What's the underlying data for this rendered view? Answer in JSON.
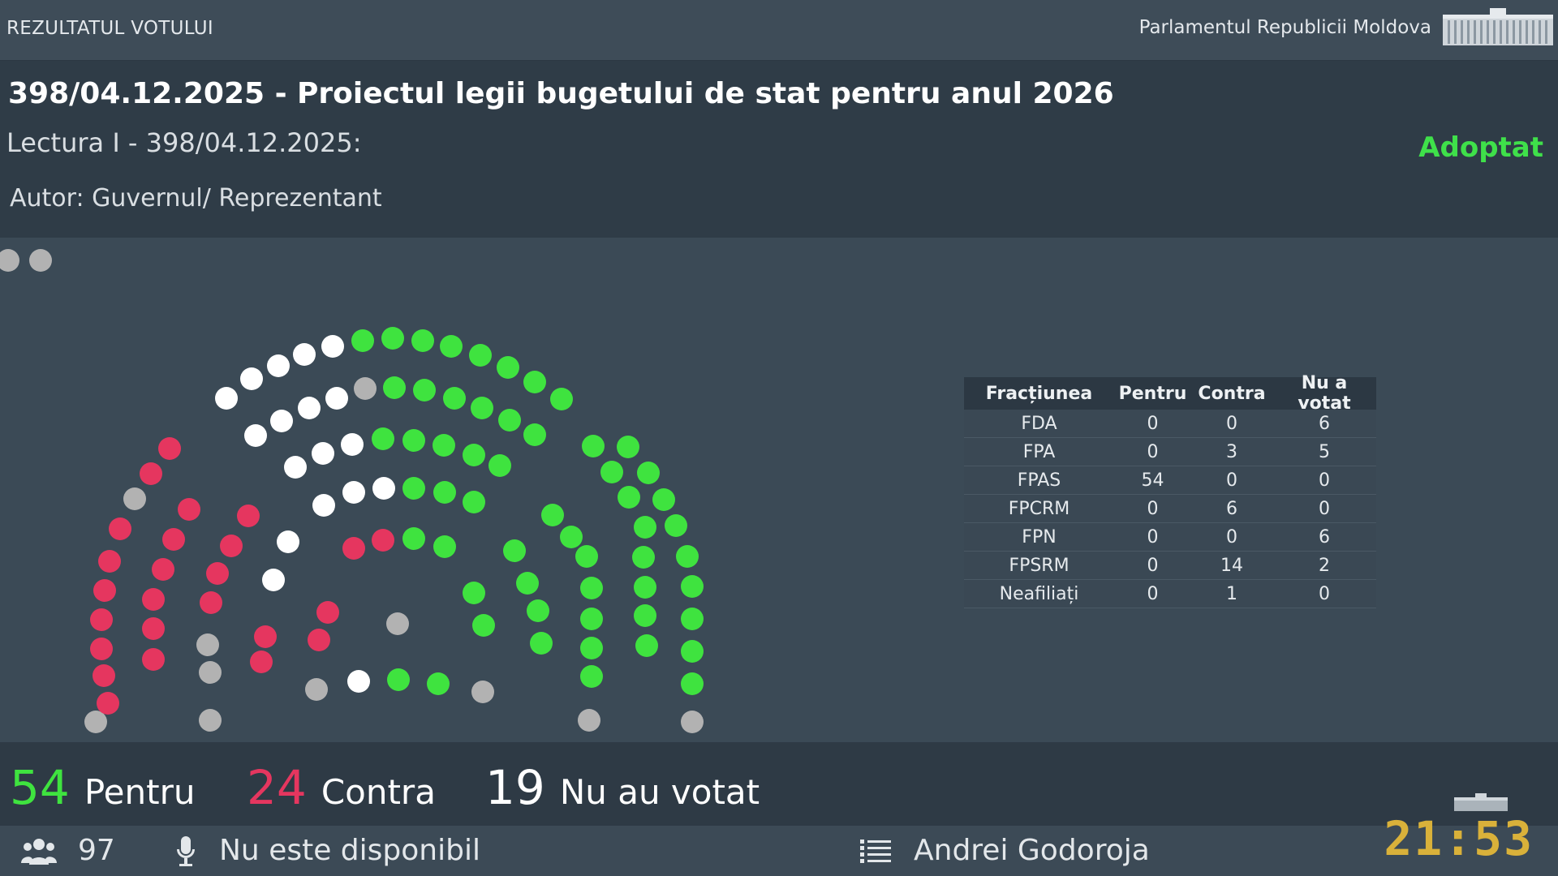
{
  "topbar": {
    "left_label": "REZULTATUL VOTULUI",
    "right_label": "Parlamentul Republicii Moldova"
  },
  "header": {
    "title": "398/04.12.2025 - Proiectul legii bugetului de stat pentru anul 2026",
    "reading": "Lectura I - 398/04.12.2025:",
    "author": "Autor: Guvernul/ Reprezentant",
    "status": "Adoptat"
  },
  "colors": {
    "pentru": "#3fe33f",
    "contra": "#e5365f",
    "neutral_white": "#ffffff",
    "absent_gray": "#b2b2b2",
    "status": "#3fe04a",
    "clock": "#d9b13a"
  },
  "table": {
    "headers": [
      "Fracțiunea",
      "Pentru",
      "Contra",
      "Nu a votat"
    ],
    "rows": [
      [
        "FDA",
        "0",
        "0",
        "6"
      ],
      [
        "FPA",
        "0",
        "3",
        "5"
      ],
      [
        "FPAS",
        "54",
        "0",
        "0"
      ],
      [
        "FPCRM",
        "0",
        "6",
        "0"
      ],
      [
        "FPN",
        "0",
        "0",
        "6"
      ],
      [
        "FPSRM",
        "0",
        "14",
        "2"
      ],
      [
        "Neafiliați",
        "0",
        "1",
        "0"
      ]
    ]
  },
  "totals": {
    "pentru_num": "54",
    "pentru_label": "Pentru",
    "contra_num": "24",
    "contra_label": "Contra",
    "absent_num": "19",
    "absent_label": "Nu au votat"
  },
  "footer": {
    "icon_people": "people-icon",
    "present_count": "97",
    "icon_mic": "microphone-icon",
    "speaker_status": "Nu este disponibil",
    "icon_list": "list-icon",
    "presiding": "Andrei Godoroja",
    "clock": "21:53"
  }
}
